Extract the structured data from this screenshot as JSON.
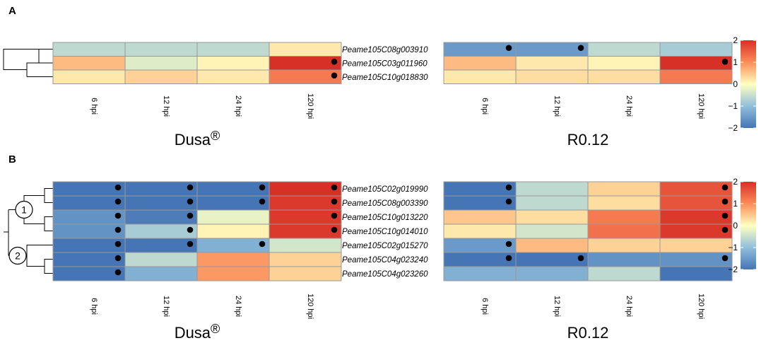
{
  "chart_data": [
    {
      "type": "heatmap",
      "panel": "A",
      "rows": [
        "Peame105C08g003910",
        "Peame105C03g011960",
        "Peame105C10g018830"
      ],
      "columns": [
        "6 hpi",
        "12 hpi",
        "24 hpi",
        "120 hpi"
      ],
      "groups": [
        {
          "name": "Dusa",
          "suffix": "®",
          "values": [
            [
              -0.6,
              -0.6,
              -0.6,
              0.2
            ],
            [
              0.6,
              -0.3,
              0.1,
              2.0
            ],
            [
              0.2,
              0.4,
              0.2,
              1.2
            ]
          ],
          "dots": [
            [
              false,
              false,
              false,
              false
            ],
            [
              false,
              false,
              false,
              true
            ],
            [
              false,
              false,
              false,
              true
            ]
          ]
        },
        {
          "name": "R0.12",
          "suffix": "",
          "values": [
            [
              -1.5,
              -1.5,
              -0.6,
              -0.8
            ],
            [
              0.6,
              0.2,
              0.1,
              2.0
            ],
            [
              0.2,
              0.3,
              0.3,
              1.2
            ]
          ],
          "dots": [
            [
              true,
              true,
              false,
              false
            ],
            [
              false,
              false,
              false,
              true
            ],
            [
              false,
              false,
              false,
              false
            ]
          ]
        }
      ],
      "legend": {
        "ticks": [
          "2",
          "1",
          "0",
          "−1",
          "−2"
        ],
        "tick_values": [
          2,
          1,
          0,
          -1,
          -2
        ],
        "range": [
          -2,
          2
        ]
      }
    },
    {
      "type": "heatmap",
      "panel": "B",
      "rows": [
        "Peame105C02g019990",
        "Peame105C08g003390",
        "Peame105C10g013220",
        "Peame105C10g014010",
        "Peame105C02g015270",
        "Peame105C04g023240",
        "Peame105C04g023260"
      ],
      "columns": [
        "6 hpi",
        "12 hpi",
        "24 hpi",
        "120 hpi"
      ],
      "clusters": [
        {
          "label": "1"
        },
        {
          "label": "2"
        }
      ],
      "groups": [
        {
          "name": "Dusa",
          "suffix": "®",
          "values": [
            [
              -2.0,
              -2.0,
              -2.0,
              2.0
            ],
            [
              -2.0,
              -2.0,
              -2.0,
              1.9
            ],
            [
              -1.6,
              -1.9,
              -0.2,
              1.9
            ],
            [
              -1.6,
              -0.8,
              0.1,
              1.9
            ],
            [
              -2.0,
              -2.0,
              -1.2,
              -0.4
            ],
            [
              -2.0,
              -0.6,
              0.9,
              0.4
            ],
            [
              -2.0,
              -1.2,
              0.9,
              0.4
            ]
          ],
          "dots": [
            [
              true,
              true,
              true,
              true
            ],
            [
              true,
              true,
              true,
              true
            ],
            [
              true,
              true,
              false,
              true
            ],
            [
              true,
              true,
              false,
              true
            ],
            [
              true,
              true,
              true,
              false
            ],
            [
              true,
              false,
              false,
              false
            ],
            [
              true,
              false,
              false,
              false
            ]
          ]
        },
        {
          "name": "R0.12",
          "suffix": "",
          "values": [
            [
              -2.0,
              -0.6,
              0.4,
              1.6
            ],
            [
              -2.0,
              -0.6,
              0.3,
              1.6
            ],
            [
              0.5,
              0.3,
              1.2,
              1.9
            ],
            [
              0.2,
              -0.4,
              1.3,
              1.9
            ],
            [
              -1.5,
              0.6,
              0.4,
              0.4
            ],
            [
              -2.0,
              -2.0,
              -1.6,
              -1.6
            ],
            [
              -1.2,
              -1.2,
              -0.6,
              -2.0
            ]
          ],
          "dots": [
            [
              true,
              false,
              false,
              true
            ],
            [
              true,
              false,
              false,
              true
            ],
            [
              false,
              false,
              false,
              true
            ],
            [
              false,
              false,
              false,
              true
            ],
            [
              true,
              false,
              false,
              false
            ],
            [
              true,
              true,
              false,
              true
            ],
            [
              false,
              false,
              false,
              false
            ]
          ]
        }
      ],
      "legend": {
        "ticks": [
          "2",
          "1",
          "0",
          "−1",
          "−2"
        ],
        "tick_values": [
          2,
          1,
          0,
          -1,
          -2
        ],
        "range": [
          -2,
          2
        ]
      }
    }
  ]
}
